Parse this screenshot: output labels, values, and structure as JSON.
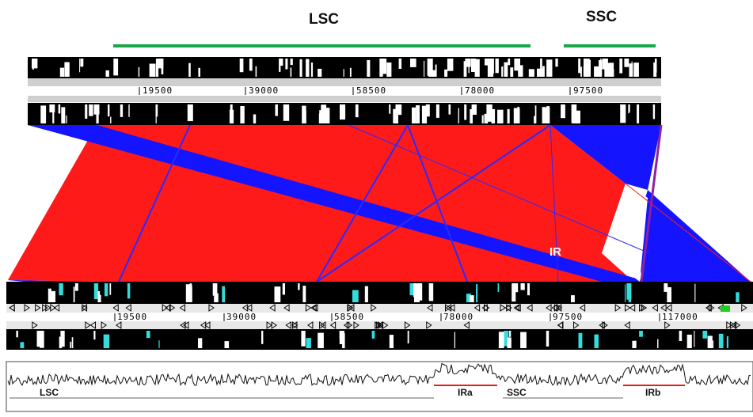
{
  "region_labels": {
    "lsc": "LSC",
    "ssc": "SSC"
  },
  "top_ruler": [
    "19500",
    "39000",
    "58500",
    "78000",
    "97500"
  ],
  "bottom_ruler": [
    "19500",
    "39000",
    "58500",
    "78000",
    "97500",
    "117000"
  ],
  "ir_label": "IR",
  "gc_plot_labels": {
    "lsc": "LSC",
    "ira": "IRa",
    "ssc": "SSC",
    "irb": "IRb"
  },
  "colors": {
    "forward_block": "#ff1a1a",
    "inverted_block": "#1414ff",
    "region_bar": "#1aa64a",
    "ir_bar": "#e02020",
    "feature_cyan": "#33dddd",
    "track_black": "#000000"
  }
}
